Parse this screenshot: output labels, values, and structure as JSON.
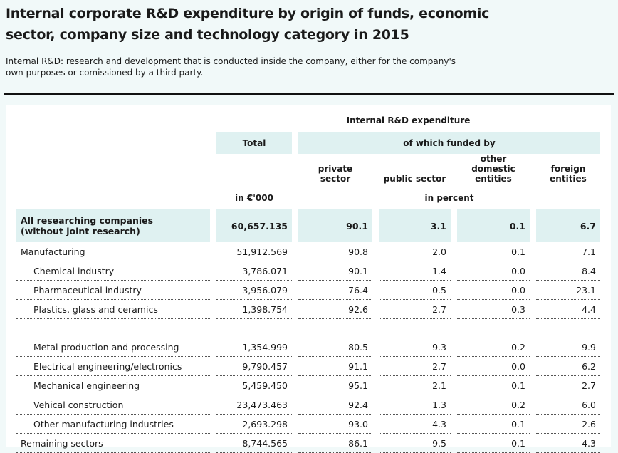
{
  "header": {
    "title": "Internal corporate R&D expenditure by origin of funds, economic sector, company size and technology category in 2015",
    "note": "Internal R&D: research and development that is conducted inside the company, either for the company's own purposes or comissioned by a third party."
  },
  "table": {
    "group_header": "Internal R&D expenditure",
    "total_header": "Total",
    "funded_header": "of which funded by",
    "columns": [
      "private sector",
      "public sector",
      "other domestic entities",
      "foreign entities"
    ],
    "total_unit": "in €'000",
    "percent_unit": "in percent",
    "rows": [
      [
        "All researching companies\n(without joint research)",
        "60,657.135",
        "90.1",
        "3.1",
        "0.1",
        "6.7"
      ],
      [
        "Manufacturing",
        "51,912.569",
        "90.8",
        "2.0",
        "0.1",
        "7.1"
      ],
      [
        "Chemical industry",
        "3,786.071",
        "90.1",
        "1.4",
        "0.0",
        "8.4"
      ],
      [
        "Pharmaceutical industry",
        "3,956.079",
        "76.4",
        "0.5",
        "0.0",
        "23.1"
      ],
      [
        "Plastics, glass and ceramics",
        "1,398.754",
        "92.6",
        "2.7",
        "0.3",
        "4.4"
      ],
      [
        "Metal production and processing",
        "1,354.999",
        "80.5",
        "9.3",
        "0.2",
        "9.9"
      ],
      [
        "Electrical engineering/electronics",
        "9,790.457",
        "91.1",
        "2.7",
        "0.0",
        "6.2"
      ],
      [
        "Mechanical engineering",
        "5,459.450",
        "95.1",
        "2.1",
        "0.1",
        "2.7"
      ],
      [
        "Vehical construction",
        "23,473.463",
        "92.4",
        "1.3",
        "0.2",
        "6.0"
      ],
      [
        "Other manufacturing industries",
        "2,693.298",
        "93.0",
        "4.3",
        "0.1",
        "2.6"
      ],
      [
        "Remaining sectors",
        "8,744.565",
        "86.1",
        "9.5",
        "0.1",
        "4.3"
      ]
    ]
  }
}
